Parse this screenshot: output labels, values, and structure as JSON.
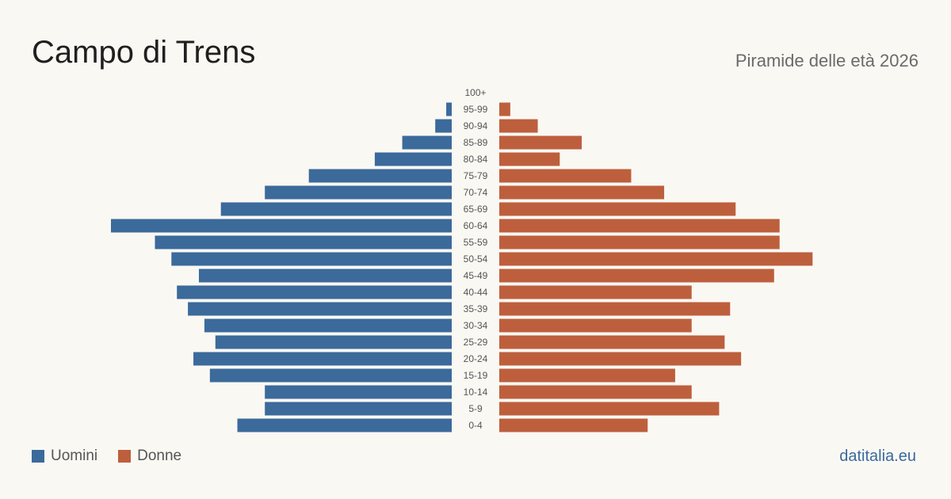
{
  "header": {
    "title": "Campo di Trens",
    "subtitle": "Piramide delle età 2026"
  },
  "legend": {
    "men_label": "Uomini",
    "women_label": "Donne"
  },
  "brand": "datitalia.eu",
  "colors": {
    "men": "#3b6a9b",
    "women": "#bd5f3d",
    "background": "#faf8f3"
  },
  "chart_data": {
    "type": "bar",
    "orientation": "horizontal-pyramid",
    "categories": [
      "100+",
      "95-99",
      "90-94",
      "85-89",
      "80-84",
      "75-79",
      "70-74",
      "65-69",
      "60-64",
      "55-59",
      "50-54",
      "45-49",
      "40-44",
      "35-39",
      "30-34",
      "25-29",
      "20-24",
      "15-19",
      "10-14",
      "5-9",
      "0-4"
    ],
    "series": [
      {
        "name": "Uomini",
        "values": [
          0,
          1,
          3,
          9,
          14,
          26,
          34,
          42,
          62,
          54,
          51,
          46,
          50,
          48,
          45,
          43,
          47,
          44,
          34,
          34,
          39
        ]
      },
      {
        "name": "Donne",
        "values": [
          0,
          2,
          7,
          15,
          11,
          24,
          30,
          43,
          51,
          51,
          57,
          50,
          35,
          42,
          35,
          41,
          44,
          32,
          35,
          40,
          27
        ]
      }
    ],
    "title": "Campo di Trens",
    "subtitle": "Piramide delle età 2026",
    "legend_position": "bottom-left",
    "grid": false
  }
}
